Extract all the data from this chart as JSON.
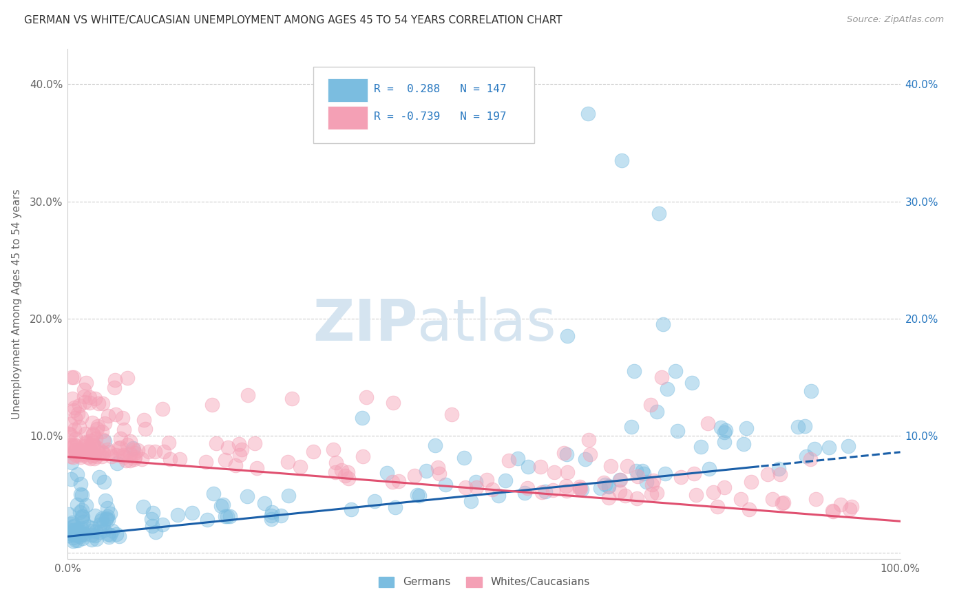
{
  "title": "GERMAN VS WHITE/CAUCASIAN UNEMPLOYMENT AMONG AGES 45 TO 54 YEARS CORRELATION CHART",
  "source": "Source: ZipAtlas.com",
  "ylabel": "Unemployment Among Ages 45 to 54 years",
  "xlim": [
    0,
    1.0
  ],
  "ylim": [
    -0.005,
    0.43
  ],
  "german_R": 0.288,
  "german_N": 147,
  "white_R": -0.739,
  "white_N": 197,
  "german_color": "#7bbde0",
  "white_color": "#f4a0b5",
  "german_line_color": "#1a5fa8",
  "white_line_color": "#e05070",
  "watermark_zip": "ZIP",
  "watermark_atlas": "atlas",
  "watermark_color": "#d5e4f0",
  "legend_label_german": "Germans",
  "legend_label_white": "Whites/Caucasians",
  "seed": 12345,
  "german_trend_intercept": 0.014,
  "german_trend_slope": 0.072,
  "white_trend_intercept": 0.082,
  "white_trend_slope": -0.055,
  "ytick_values": [
    0.0,
    0.1,
    0.2,
    0.3,
    0.4
  ],
  "ytick_labels_left": [
    "",
    "10.0%",
    "20.0%",
    "30.0%",
    "40.0%"
  ],
  "ytick_labels_right": [
    "",
    "10.0%",
    "20.0%",
    "30.0%",
    "40.0%"
  ]
}
